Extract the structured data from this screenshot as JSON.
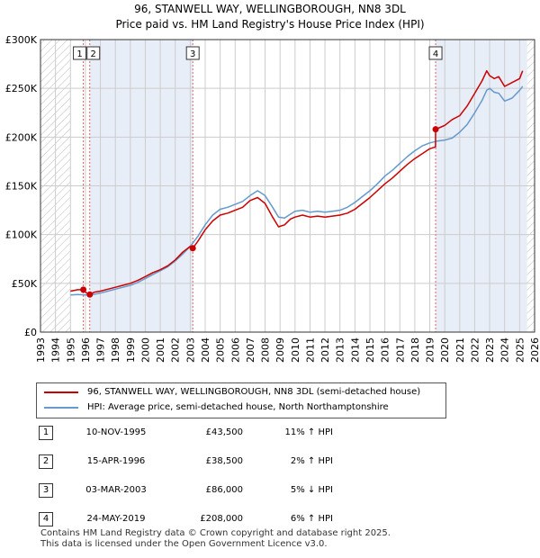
{
  "title_line1": "96, STANWELL WAY, WELLINGBOROUGH, NN8 3DL",
  "title_line2": "Price paid vs. HM Land Registry's House Price Index (HPI)",
  "colors": {
    "price_line": "#cc0000",
    "hpi_line": "#6699cc",
    "sale_marker": "#cc0000",
    "shade": "#e8eef8",
    "vline": "#e06060"
  },
  "legend": {
    "price_label": "96, STANWELL WAY, WELLINGBOROUGH, NN8 3DL (semi-detached house)",
    "hpi_label": "HPI: Average price, semi-detached house, North Northamptonshire"
  },
  "sales": [
    {
      "num": "1",
      "date": "10-NOV-1995",
      "price": "£43,500",
      "hpi": "11% ↑ HPI",
      "year": 1995.86,
      "value": 43500
    },
    {
      "num": "2",
      "date": "15-APR-1996",
      "price": "£38,500",
      "hpi": "2% ↑ HPI",
      "year": 1996.29,
      "value": 38500
    },
    {
      "num": "3",
      "date": "03-MAR-2003",
      "price": "£86,000",
      "hpi": "5% ↓ HPI",
      "year": 2003.17,
      "value": 86000
    },
    {
      "num": "4",
      "date": "24-MAY-2019",
      "price": "£208,000",
      "hpi": "6% ↑ HPI",
      "year": 2019.39,
      "value": 208000
    }
  ],
  "footer": {
    "line1": "Contains HM Land Registry data © Crown copyright and database right 2025.",
    "line2": "This data is licensed under the Open Government Licence v3.0."
  },
  "chart_data": {
    "type": "line",
    "title": "96, STANWELL WAY, WELLINGBOROUGH, NN8 3DL — Price paid vs. HM Land Registry's House Price Index (HPI)",
    "xlabel": "",
    "ylabel": "",
    "xlim": [
      1993,
      2026
    ],
    "ylim": [
      0,
      300000
    ],
    "grid": true,
    "legend_position": "bottom",
    "x_ticks": [
      "1993",
      "1994",
      "1995",
      "1996",
      "1997",
      "1998",
      "1999",
      "2000",
      "2001",
      "2002",
      "2003",
      "2004",
      "2005",
      "2006",
      "2007",
      "2008",
      "2009",
      "2010",
      "2011",
      "2012",
      "2013",
      "2014",
      "2015",
      "2016",
      "2017",
      "2018",
      "2019",
      "2020",
      "2021",
      "2022",
      "2023",
      "2024",
      "2025",
      "2026"
    ],
    "y_ticks": [
      {
        "value": 0,
        "label": "£0"
      },
      {
        "value": 50000,
        "label": "£50K"
      },
      {
        "value": 100000,
        "label": "£100K"
      },
      {
        "value": 150000,
        "label": "£150K"
      },
      {
        "value": 200000,
        "label": "£200K"
      },
      {
        "value": 250000,
        "label": "£250K"
      },
      {
        "value": 300000,
        "label": "£300K"
      }
    ],
    "shaded_ranges": [
      [
        1996.29,
        2003.17
      ],
      [
        2019.39,
        2025.5
      ]
    ],
    "hatched_ranges": [
      [
        1993,
        1995.0
      ],
      [
        2025.1,
        2026
      ]
    ],
    "series": [
      {
        "name": "96, STANWELL WAY, WELLINGBOROUGH, NN8 3DL (semi-detached house)",
        "x": [
          1995.0,
          1995.5,
          1995.86,
          1996.0,
          1996.29,
          1996.6,
          1997.0,
          1997.5,
          1998.0,
          1998.5,
          1999.0,
          1999.5,
          2000.0,
          2000.5,
          2001.0,
          2001.5,
          2002.0,
          2002.5,
          2003.0,
          2003.17,
          2003.5,
          2004.0,
          2004.5,
          2005.0,
          2005.5,
          2006.0,
          2006.5,
          2007.0,
          2007.5,
          2008.0,
          2008.5,
          2008.9,
          2009.3,
          2009.7,
          2010.0,
          2010.5,
          2011.0,
          2011.5,
          2012.0,
          2012.5,
          2013.0,
          2013.5,
          2014.0,
          2014.5,
          2015.0,
          2015.5,
          2016.0,
          2016.5,
          2017.0,
          2017.5,
          2018.0,
          2018.5,
          2019.0,
          2019.38,
          2019.39,
          2019.7,
          2020.0,
          2020.5,
          2021.0,
          2021.5,
          2022.0,
          2022.5,
          2022.8,
          2023.0,
          2023.3,
          2023.6,
          2024.0,
          2024.5,
          2025.0,
          2025.2
        ],
        "y": [
          42000,
          43500,
          43500,
          41000,
          38500,
          41000,
          42000,
          44000,
          46000,
          48000,
          50000,
          53000,
          57000,
          61000,
          64000,
          68000,
          74000,
          82000,
          88000,
          86000,
          93000,
          105000,
          114000,
          120000,
          122000,
          125000,
          128000,
          135000,
          138000,
          132000,
          118000,
          108000,
          110000,
          116000,
          118000,
          120000,
          118000,
          119000,
          118000,
          119000,
          120000,
          122000,
          126000,
          132000,
          138000,
          145000,
          152000,
          158000,
          165000,
          172000,
          178000,
          183000,
          188000,
          190000,
          208000,
          210000,
          212000,
          218000,
          222000,
          232000,
          245000,
          258000,
          268000,
          263000,
          260000,
          262000,
          252000,
          256000,
          260000,
          268000
        ]
      },
      {
        "name": "HPI: Average price, semi-detached house, North Northamptonshire",
        "x": [
          1995.0,
          1995.5,
          1996.0,
          1996.5,
          1997.0,
          1997.5,
          1998.0,
          1998.5,
          1999.0,
          1999.5,
          2000.0,
          2000.5,
          2001.0,
          2001.5,
          2002.0,
          2002.5,
          2003.0,
          2003.5,
          2004.0,
          2004.5,
          2005.0,
          2005.5,
          2006.0,
          2006.5,
          2007.0,
          2007.5,
          2008.0,
          2008.5,
          2008.9,
          2009.3,
          2009.7,
          2010.0,
          2010.5,
          2011.0,
          2011.5,
          2012.0,
          2012.5,
          2013.0,
          2013.5,
          2014.0,
          2014.5,
          2015.0,
          2015.5,
          2016.0,
          2016.5,
          2017.0,
          2017.5,
          2018.0,
          2018.5,
          2019.0,
          2019.5,
          2020.0,
          2020.5,
          2021.0,
          2021.5,
          2022.0,
          2022.5,
          2022.8,
          2023.0,
          2023.3,
          2023.6,
          2024.0,
          2024.5,
          2025.0,
          2025.2
        ],
        "y": [
          38000,
          38500,
          38000,
          38500,
          40000,
          42000,
          44000,
          46000,
          48000,
          51000,
          55000,
          59000,
          63000,
          67000,
          73000,
          80000,
          88000,
          98000,
          110000,
          120000,
          126000,
          128000,
          131000,
          134000,
          140000,
          145000,
          140000,
          128000,
          118000,
          117000,
          121000,
          124000,
          125000,
          123000,
          124000,
          123000,
          124000,
          125000,
          128000,
          133000,
          139000,
          145000,
          152000,
          160000,
          166000,
          173000,
          180000,
          186000,
          191000,
          194000,
          196000,
          197000,
          199000,
          205000,
          213000,
          225000,
          238000,
          248000,
          250000,
          246000,
          245000,
          237000,
          240000,
          248000,
          252000
        ]
      }
    ]
  }
}
